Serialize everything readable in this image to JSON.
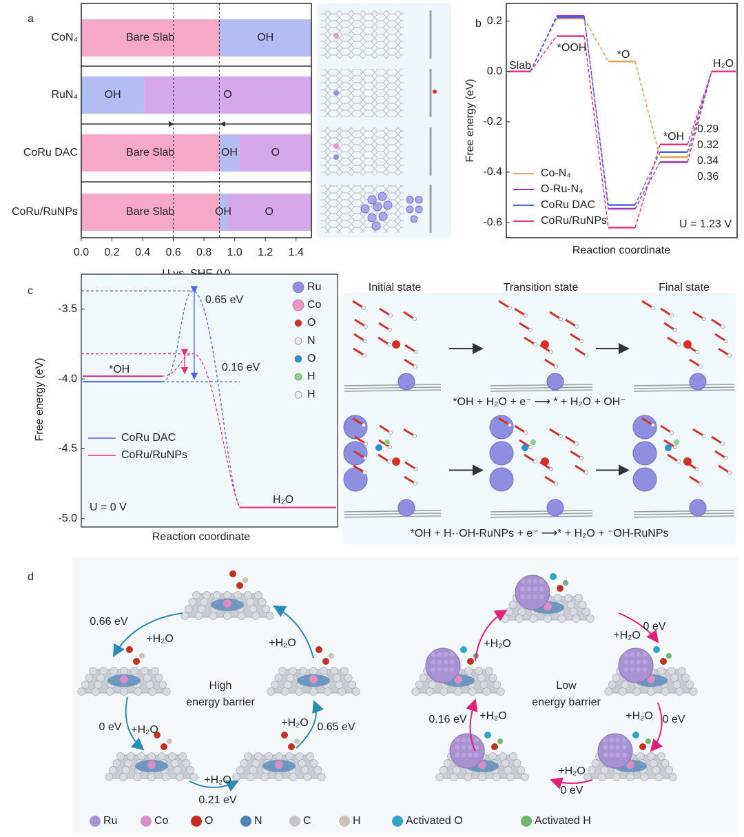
{
  "panel_labels": [
    "a",
    "b",
    "c",
    "d"
  ],
  "chart_data": [
    {
      "type": "bar",
      "orientation": "horizontal",
      "categories": [
        "CoN₄",
        "RuN₄",
        "CoRu DAC",
        "CoRu/RuNPs"
      ],
      "segments": [
        [
          {
            "label": "Bare Slab",
            "range": [
              0,
              0.9
            ]
          },
          {
            "label": "OH",
            "range": [
              0.9,
              1.5
            ]
          }
        ],
        [
          {
            "label": "OH",
            "range": [
              0,
              0.41
            ]
          },
          {
            "label": "O",
            "range": [
              0.41,
              1.5
            ]
          }
        ],
        [
          {
            "label": "Bare Slab",
            "range": [
              0,
              0.9
            ]
          },
          {
            "label": "OH",
            "range": [
              0.9,
              1.03
            ]
          },
          {
            "label": "O",
            "range": [
              1.03,
              1.5
            ]
          }
        ],
        [
          {
            "label": "Bare Slab",
            "range": [
              0,
              0.9
            ]
          },
          {
            "label": "OH",
            "range": [
              0.9,
              0.95
            ]
          },
          {
            "label": "O",
            "range": [
              0.95,
              1.5
            ]
          }
        ]
      ],
      "colors": {
        "Bare Slab": "#f6a8c8",
        "OH": "#b4bdf3",
        "O": "#d6a7e9"
      },
      "vlines": [
        0.6,
        0.9
      ],
      "xlim": [
        0,
        1.5
      ],
      "xticks": [
        {
          "value": 0,
          "label": "0.0"
        },
        0.2,
        0.4,
        0.6,
        0.8,
        {
          "value": 1,
          "label": "1.0"
        },
        1.2,
        1.4
      ],
      "xlabel": "U vs. SHE (V)"
    },
    {
      "type": "line",
      "step_labels": [
        "Slab",
        "*OOH",
        "*O",
        "*OH",
        "H₂O"
      ],
      "series": [
        {
          "name": "Co-N₄",
          "color": "#e9a050",
          "values": [
            0,
            0.21,
            0.04,
            -0.34,
            0
          ],
          "overpotential": 0.34
        },
        {
          "name": "O-Ru-N₄",
          "color": "#a32fc4",
          "values": [
            0,
            0.22,
            -0.545,
            -0.36,
            0
          ],
          "overpotential": 0.36
        },
        {
          "name": "CoRu DAC",
          "color": "#4a62e3",
          "values": [
            0,
            0.215,
            -0.53,
            -0.32,
            0
          ],
          "overpotential": 0.32
        },
        {
          "name": "CoRu/RuNPs",
          "color": "#e2307f",
          "values": [
            0,
            0.14,
            -0.62,
            -0.29,
            0
          ],
          "overpotential": 0.29
        }
      ],
      "ylim": [
        -0.66,
        0.27
      ],
      "yticks": [
        0.2,
        {
          "value": 0,
          "label": "0.0"
        },
        -0.2,
        -0.4,
        -0.6
      ],
      "ylabel": "Free energy (eV)",
      "xlabel": "Reaction coordinate",
      "annotation": "U = 1.23 V",
      "legend": "lower left"
    },
    {
      "type": "line",
      "series": [
        {
          "name": "CoRu DAC",
          "color": "#4a62e3",
          "values": [
            -4.02,
            -3.37,
            -4.92
          ],
          "barrier_label": "0.65 eV"
        },
        {
          "name": "CoRu/RuNPs",
          "color": "#e2307f",
          "values": [
            -3.98,
            -3.82,
            -4.92
          ],
          "barrier_label": "0.16 eV"
        }
      ],
      "state_labels": {
        "initial": "*OH",
        "final": "H₂O"
      },
      "annotation": "U = 0 V",
      "ylim": [
        -5.06,
        -3.25
      ],
      "yticks": [
        -3.5,
        {
          "value": -4,
          "label": "-4.0"
        },
        -4.5,
        {
          "value": -5,
          "label": "-5.0"
        }
      ],
      "ylabel": "Free energy (eV)",
      "xlabel": "Reaction coordinate",
      "legend": "lower left"
    }
  ],
  "panel_c_structures": {
    "atom_legend": [
      {
        "name": "Ru",
        "color": "#8f8fe2"
      },
      {
        "name": "Co",
        "color": "#ec95c8"
      },
      {
        "name": "O",
        "color": "#d23029"
      },
      {
        "name": "N",
        "color": "#f4e4ee"
      },
      {
        "name": "O",
        "color": "#2a8fd4"
      },
      {
        "name": "H",
        "color": "#86d686"
      },
      {
        "name": "H",
        "color": "#f5eeee"
      }
    ],
    "states": [
      "Initial state",
      "Transition state",
      "Final state"
    ],
    "equations": [
      "*OH + H₂O + e⁻ ⟶ * + H₂O + OH⁻",
      "*OH + H··OH-RuNPs + e⁻ ⟶* + H₂O + ⁻OH-RuNPs"
    ]
  },
  "panel_d": {
    "left": {
      "barrier": [
        "High",
        "energy barrier"
      ],
      "labels": [
        "0.66 eV",
        "+H₂O",
        "+H₂O",
        "+H₂O",
        "0 eV",
        "+H₂O",
        "0.65 eV",
        "+H₂O",
        "0.21 eV"
      ]
    },
    "right": {
      "barrier": [
        "Low",
        "energy barrier"
      ],
      "labels": [
        "+H₂O",
        "0 eV",
        "+H₂O",
        "+H₂O",
        "0 eV",
        "0.16 eV",
        "+H₂O",
        "+H₂O",
        "0 eV"
      ]
    },
    "legend": [
      {
        "name": "Ru",
        "color": "#a890d2"
      },
      {
        "name": "Co",
        "color": "#d88fc6"
      },
      {
        "name": "O",
        "color": "#c2301f"
      },
      {
        "name": "N",
        "color": "#4f84b8"
      },
      {
        "name": "C",
        "color": "#c4c6cc"
      },
      {
        "name": "H",
        "color": "#cbc2b9"
      },
      {
        "name": "Activated O",
        "color": "#2ea4c6"
      },
      {
        "name": "Activated H",
        "color": "#6fb46f"
      }
    ]
  }
}
